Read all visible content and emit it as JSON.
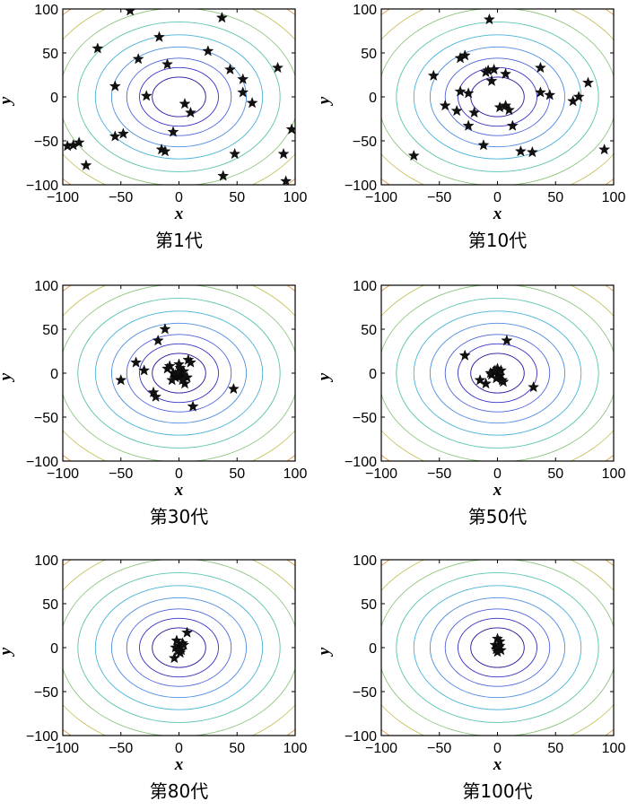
{
  "chart_data": [
    {
      "type": "scatter",
      "title": "第1代",
      "xlabel": "x",
      "ylabel": "y",
      "xlim": [
        -100,
        100
      ],
      "ylim": [
        -100,
        100
      ],
      "xticks": [
        "-100",
        "-50",
        "0",
        "50",
        "100"
      ],
      "yticks": [
        "100",
        "50",
        "0",
        "-50",
        "-100"
      ],
      "points": [
        [
          -42,
          98
        ],
        [
          37,
          90
        ],
        [
          -70,
          55
        ],
        [
          -17,
          68
        ],
        [
          -35,
          43
        ],
        [
          -10,
          37
        ],
        [
          25,
          52
        ],
        [
          -55,
          12
        ],
        [
          -28,
          1
        ],
        [
          44,
          31
        ],
        [
          55,
          20
        ],
        [
          55,
          5
        ],
        [
          63,
          -7
        ],
        [
          85,
          33
        ],
        [
          -96,
          -56
        ],
        [
          -91,
          -55
        ],
        [
          -86,
          -52
        ],
        [
          -80,
          -78
        ],
        [
          -55,
          -45
        ],
        [
          -48,
          -42
        ],
        [
          -15,
          -60
        ],
        [
          -12,
          -62
        ],
        [
          -5,
          -40
        ],
        [
          5,
          -8
        ],
        [
          10,
          -18
        ],
        [
          48,
          -65
        ],
        [
          38,
          -90
        ],
        [
          90,
          -65
        ],
        [
          92,
          -96
        ],
        [
          97,
          -37
        ]
      ]
    },
    {
      "type": "scatter",
      "title": "第10代",
      "xlabel": "x",
      "ylabel": "y",
      "xlim": [
        -100,
        100
      ],
      "ylim": [
        -100,
        100
      ],
      "xticks": [
        "-100",
        "-50",
        "0",
        "50",
        "100"
      ],
      "yticks": [
        "100",
        "50",
        "0",
        "-50",
        "-100"
      ],
      "points": [
        [
          -7,
          88
        ],
        [
          -32,
          44
        ],
        [
          -28,
          47
        ],
        [
          -55,
          24
        ],
        [
          -45,
          -10
        ],
        [
          -8,
          30
        ],
        [
          -3,
          31
        ],
        [
          -5,
          18
        ],
        [
          7,
          26
        ],
        [
          -10,
          28
        ],
        [
          -32,
          6
        ],
        [
          -25,
          4
        ],
        [
          -25,
          -33
        ],
        [
          -20,
          -18
        ],
        [
          -35,
          -16
        ],
        [
          2,
          -12
        ],
        [
          7,
          -10
        ],
        [
          10,
          -15
        ],
        [
          13,
          -33
        ],
        [
          -12,
          -55
        ],
        [
          37,
          33
        ],
        [
          37,
          5
        ],
        [
          45,
          2
        ],
        [
          65,
          -5
        ],
        [
          70,
          0
        ],
        [
          78,
          16
        ],
        [
          20,
          -62
        ],
        [
          30,
          -63
        ],
        [
          -72,
          -67
        ],
        [
          92,
          -60
        ]
      ]
    },
    {
      "type": "scatter",
      "title": "第30代",
      "xlabel": "x",
      "ylabel": "y",
      "xlim": [
        -100,
        100
      ],
      "ylim": [
        -100,
        100
      ],
      "xticks": [
        "-100",
        "-50",
        "0",
        "50",
        "100"
      ],
      "yticks": [
        "100",
        "50",
        "0",
        "-50",
        "-100"
      ],
      "points": [
        [
          -12,
          50
        ],
        [
          -18,
          37
        ],
        [
          -37,
          12
        ],
        [
          -30,
          3
        ],
        [
          -50,
          -8
        ],
        [
          -22,
          -22
        ],
        [
          -20,
          -27
        ],
        [
          -10,
          5
        ],
        [
          -8,
          8
        ],
        [
          -5,
          0
        ],
        [
          -3,
          -5
        ],
        [
          0,
          10
        ],
        [
          2,
          -3
        ],
        [
          4,
          2
        ],
        [
          5,
          -12
        ],
        [
          7,
          -5
        ],
        [
          8,
          15
        ],
        [
          10,
          12
        ],
        [
          12,
          -38
        ],
        [
          -3,
          -2
        ],
        [
          -6,
          -8
        ],
        [
          1,
          6
        ],
        [
          3,
          -8
        ],
        [
          -1,
          1
        ],
        [
          47,
          -18
        ]
      ]
    },
    {
      "type": "scatter",
      "title": "第50代",
      "xlabel": "x",
      "ylabel": "y",
      "xlim": [
        -100,
        100
      ],
      "ylim": [
        -100,
        100
      ],
      "xticks": [
        "-100",
        "-50",
        "0",
        "50",
        "100"
      ],
      "yticks": [
        "100",
        "50",
        "0",
        "-50",
        "-100"
      ],
      "points": [
        [
          -28,
          20
        ],
        [
          8,
          37
        ],
        [
          -15,
          -8
        ],
        [
          -10,
          -12
        ],
        [
          -5,
          -2
        ],
        [
          -3,
          2
        ],
        [
          0,
          5
        ],
        [
          2,
          -3
        ],
        [
          3,
          3
        ],
        [
          -1,
          -6
        ],
        [
          4,
          -8
        ],
        [
          -6,
          0
        ],
        [
          1,
          1
        ],
        [
          5,
          -10
        ],
        [
          -2,
          3
        ],
        [
          31,
          -16
        ]
      ]
    },
    {
      "type": "scatter",
      "title": "第80代",
      "xlabel": "x",
      "ylabel": "y",
      "xlim": [
        -100,
        100
      ],
      "ylim": [
        -100,
        100
      ],
      "xticks": [
        "-100",
        "-50",
        "0",
        "50",
        "100"
      ],
      "yticks": [
        "100",
        "50",
        "0",
        "-50",
        "-100"
      ],
      "points": [
        [
          7,
          17
        ],
        [
          3,
          5
        ],
        [
          0,
          2
        ],
        [
          -3,
          0
        ],
        [
          2,
          -3
        ],
        [
          -4,
          -12
        ],
        [
          -2,
          8
        ],
        [
          1,
          -6
        ],
        [
          4,
          3
        ],
        [
          -1,
          -4
        ]
      ]
    },
    {
      "type": "scatter",
      "title": "第100代",
      "xlabel": "x",
      "ylabel": "y",
      "xlim": [
        -100,
        100
      ],
      "ylim": [
        -100,
        100
      ],
      "xticks": [
        "-100",
        "-50",
        "0",
        "50",
        "100"
      ],
      "yticks": [
        "100",
        "50",
        "0",
        "-50",
        "-100"
      ],
      "points": [
        [
          0,
          10
        ],
        [
          2,
          7
        ],
        [
          -2,
          3
        ],
        [
          1,
          0
        ],
        [
          3,
          -3
        ],
        [
          -1,
          -2
        ],
        [
          0,
          -5
        ],
        [
          2,
          2
        ]
      ]
    }
  ]
}
